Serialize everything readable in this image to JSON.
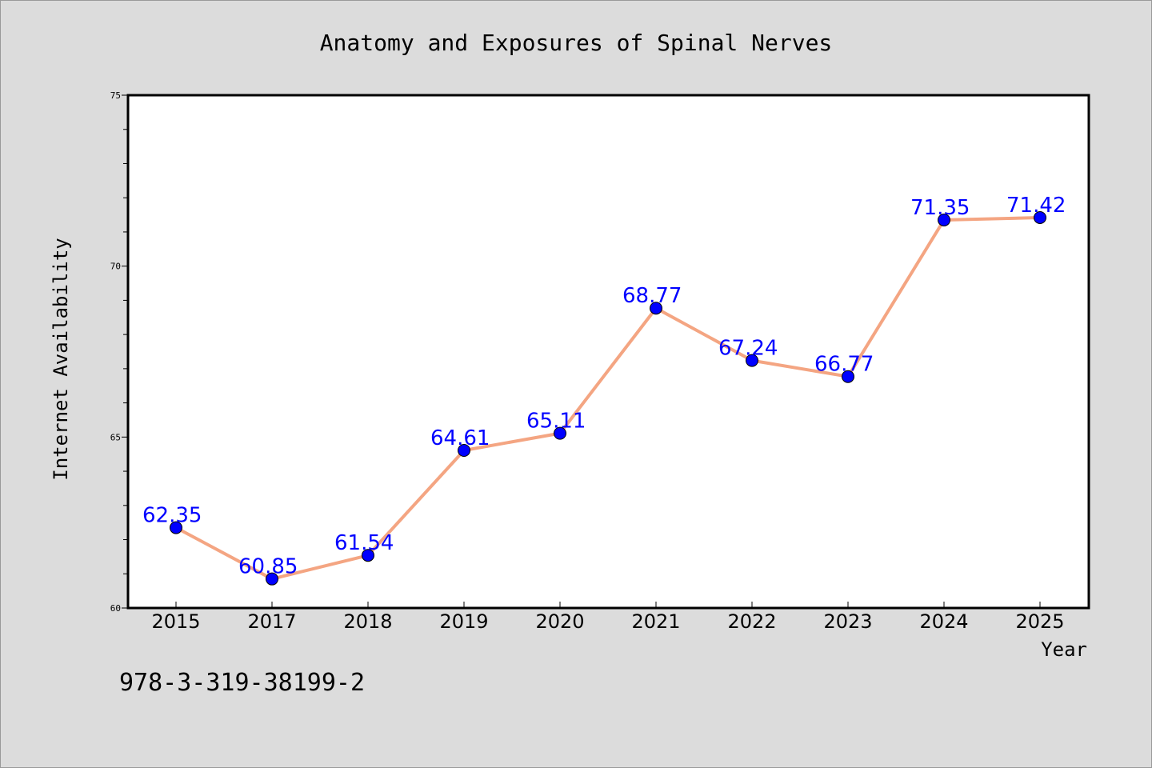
{
  "chart_data": {
    "type": "line",
    "title": "Anatomy and Exposures of Spinal Nerves",
    "xlabel": "Year",
    "ylabel": "Internet Availability",
    "categories": [
      "2015",
      "2017",
      "2018",
      "2019",
      "2020",
      "2021",
      "2022",
      "2023",
      "2024",
      "2025"
    ],
    "series": [
      {
        "values": [
          62.35,
          60.85,
          61.54,
          64.61,
          65.11,
          68.77,
          67.24,
          66.77,
          71.35,
          71.42
        ],
        "labels": [
          "62.35",
          "60.85",
          "61.54",
          "64.61",
          "65.11",
          "68.77",
          "67.24",
          "66.77",
          "71.35",
          "71.42"
        ]
      }
    ],
    "ylim": [
      60,
      75
    ],
    "y_ticks": [
      "60",
      "65",
      "70",
      "75"
    ],
    "grid": false,
    "colors": {
      "line": "#f4a582",
      "marker": "#0000ff",
      "data_label": "#0000ff",
      "plot_background": "#ffffff",
      "figure_background": "#dcdcdc"
    }
  },
  "footer_text": "978-3-319-38199-2"
}
